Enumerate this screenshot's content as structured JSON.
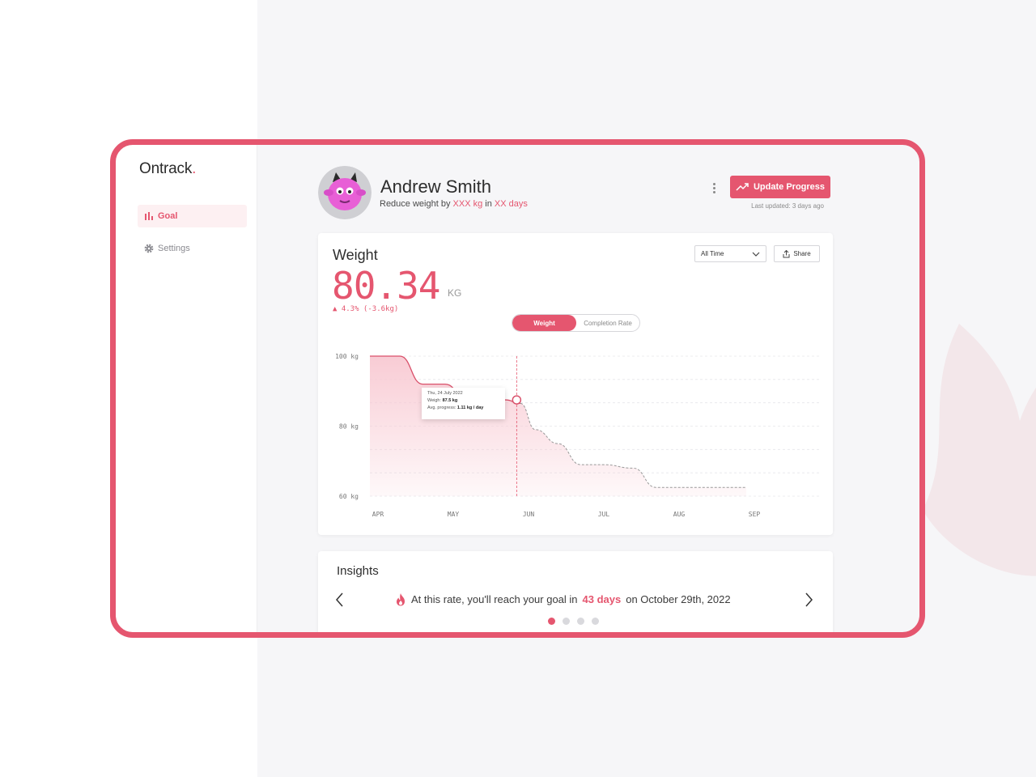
{
  "app": {
    "logo_text": "Ontrack",
    "logo_dot": "."
  },
  "sidebar": {
    "items": [
      {
        "label": "Goal",
        "icon": "bar-chart-icon",
        "active": true
      },
      {
        "label": "Settings",
        "icon": "gear-icon",
        "active": false
      }
    ]
  },
  "profile": {
    "name": "Andrew Smith",
    "goal_prefix": "Reduce weight by",
    "goal_amount": "XXX kg",
    "goal_mid": "in",
    "goal_days": "XX days"
  },
  "header": {
    "update_label": "Update Progress",
    "last_updated": "Last updated: 3 days ago"
  },
  "weight_card": {
    "title": "Weight",
    "value": "80.34",
    "unit": "KG",
    "delta": "4.3% (-3.6kg)",
    "range": "All Time",
    "share_label": "Share",
    "toggle": [
      "Weight",
      "Completion Rate"
    ],
    "tooltip": {
      "date": "Thu, 24 July 2022",
      "weight_label": "Weigh:",
      "weight_value": "87.5 kg",
      "progress_label": "Avg. progress:",
      "progress_value": "1.11 kg / day"
    }
  },
  "chart_data": {
    "type": "area",
    "x_ticks": [
      "APR",
      "MAY",
      "JUN",
      "JUL",
      "AUG",
      "SEP"
    ],
    "y_ticks": [
      "100 kg",
      "80 kg",
      "60 kg"
    ],
    "ylim": [
      60,
      100
    ],
    "actual": {
      "x": [
        0,
        0.4,
        0.7,
        1.0,
        1.2,
        1.5,
        1.8,
        2.0
      ],
      "y": [
        100,
        100,
        92,
        92,
        90,
        89,
        87.5,
        86.5
      ]
    },
    "projected": {
      "x": [
        2.0,
        2.2,
        2.5,
        2.8,
        3.1,
        3.5,
        3.8,
        4.2,
        5.0
      ],
      "y": [
        86.5,
        79,
        75,
        69,
        69,
        68,
        62.5,
        62.5,
        62.5
      ]
    },
    "highlight": {
      "x": 1.95,
      "y": 87.5
    },
    "colors": {
      "line": "#d9506a",
      "area": "#f8c9d2"
    }
  },
  "insights": {
    "title": "Insights",
    "text_prefix": "At this rate, you'll reach your goal in",
    "days": "43 days",
    "text_suffix": "on October 29th, 2022",
    "pages": 4,
    "active_page": 0
  }
}
